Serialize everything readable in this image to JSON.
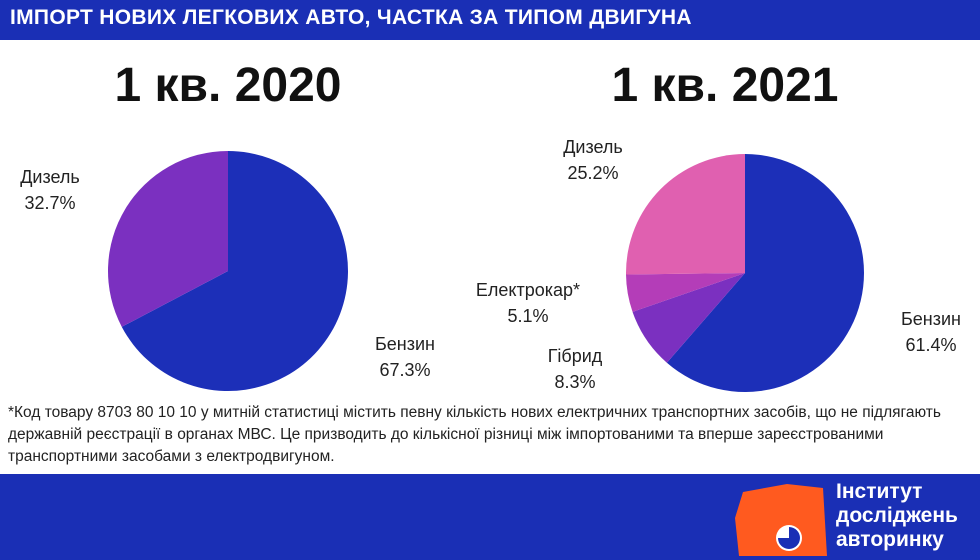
{
  "header": {
    "title": "ІМПОРТ НОВИХ ЛЕГКОВИХ АВТО, ЧАСТКА ЗА ТИПОМ ДВИГУНА"
  },
  "chart_data": [
    {
      "type": "pie",
      "title": "1 кв. 2020",
      "slices": [
        {
          "label": "Бензин",
          "value_text": "67.3%",
          "value": 67.3,
          "color": "#1c2fb8"
        },
        {
          "label": "Дизель",
          "value_text": "32.7%",
          "value": 32.7,
          "color": "#7b30c0"
        }
      ]
    },
    {
      "type": "pie",
      "title": "1 кв. 2021",
      "slices": [
        {
          "label": "Бензин",
          "value_text": "61.4%",
          "value": 61.4,
          "color": "#1c2fb8"
        },
        {
          "label": "Гібрид",
          "value_text": "8.3%",
          "value": 8.3,
          "color": "#7b30c0"
        },
        {
          "label": "Електрокар*",
          "value_text": "5.1%",
          "value": 5.1,
          "color": "#b43db8"
        },
        {
          "label": "Дизель",
          "value_text": "25.2%",
          "value": 25.2,
          "color": "#e060b0"
        }
      ]
    }
  ],
  "footnote": "*Код товару 8703 80 10 10 у митній статистиці містить певну кількість нових електричних транспортних засобів, що не підлягають державній реєстрації в органах МВС. Це призводить до кількісної різниці між імпортованими та вперше зареєстрованими транспортними засобами з електродвигуном.",
  "logo": {
    "line1": "Інститут",
    "line2": "досліджень",
    "line3": "авторинку",
    "colors": {
      "orange": "#ff5a1f",
      "blue": "#1a2fb5",
      "white": "#ffffff"
    }
  }
}
